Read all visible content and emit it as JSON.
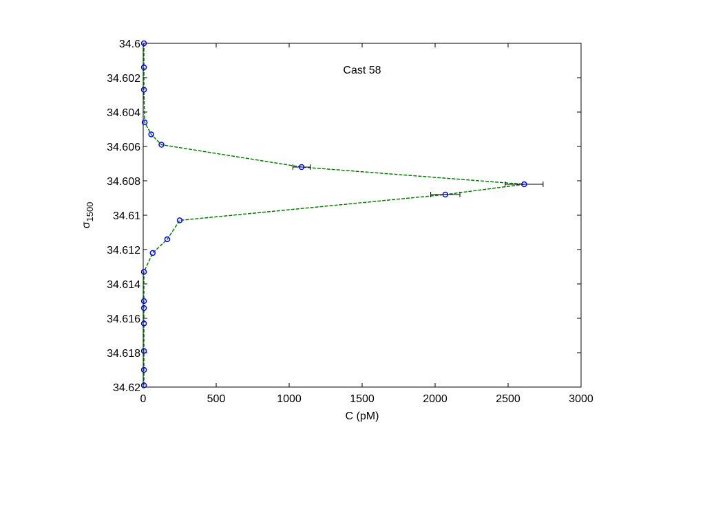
{
  "chart_data": {
    "type": "line",
    "title": "Cast 58",
    "xlabel": "C  (pM)",
    "ylabel_main": "σ",
    "ylabel_sub": "1500",
    "xlim": [
      0,
      3000
    ],
    "ylim": [
      34.6,
      34.62
    ],
    "y_reversed": true,
    "grid": false,
    "xticks": [
      0,
      500,
      1000,
      1500,
      2000,
      2500,
      3000
    ],
    "xtick_labels": [
      "0",
      "500",
      "1000",
      "1500",
      "2000",
      "2500",
      "3000"
    ],
    "yticks": [
      34.6,
      34.602,
      34.604,
      34.606,
      34.608,
      34.61,
      34.612,
      34.614,
      34.616,
      34.618,
      34.62
    ],
    "ytick_labels": [
      "34.6",
      "34.602",
      "34.604",
      "34.606",
      "34.608",
      "34.61",
      "34.612",
      "34.614",
      "34.616",
      "34.618",
      "34.62"
    ],
    "marker_color": "#0000ff",
    "line_color": "#008000",
    "points": [
      {
        "x": 5,
        "y": 34.6,
        "xerr": 0
      },
      {
        "x": 5,
        "y": 34.6014,
        "xerr": 0
      },
      {
        "x": 5,
        "y": 34.6027,
        "xerr": 0
      },
      {
        "x": 10,
        "y": 34.6046,
        "xerr": 0
      },
      {
        "x": 55,
        "y": 34.6053,
        "xerr": 0
      },
      {
        "x": 125,
        "y": 34.6059,
        "xerr": 0
      },
      {
        "x": 1085,
        "y": 34.6072,
        "xerr": 60
      },
      {
        "x": 2610,
        "y": 34.6082,
        "xerr": 130
      },
      {
        "x": 2070,
        "y": 34.6088,
        "xerr": 100
      },
      {
        "x": 250,
        "y": 34.6103,
        "xerr": 0
      },
      {
        "x": 165,
        "y": 34.6114,
        "xerr": 0
      },
      {
        "x": 65,
        "y": 34.6122,
        "xerr": 0
      },
      {
        "x": 5,
        "y": 34.6133,
        "xerr": 0
      },
      {
        "x": 5,
        "y": 34.615,
        "xerr": 0
      },
      {
        "x": 5,
        "y": 34.6154,
        "xerr": 0
      },
      {
        "x": 5,
        "y": 34.6163,
        "xerr": 0
      },
      {
        "x": 5,
        "y": 34.6179,
        "xerr": 0
      },
      {
        "x": 5,
        "y": 34.619,
        "xerr": 0
      },
      {
        "x": 5,
        "y": 34.6199,
        "xerr": 0
      }
    ]
  }
}
